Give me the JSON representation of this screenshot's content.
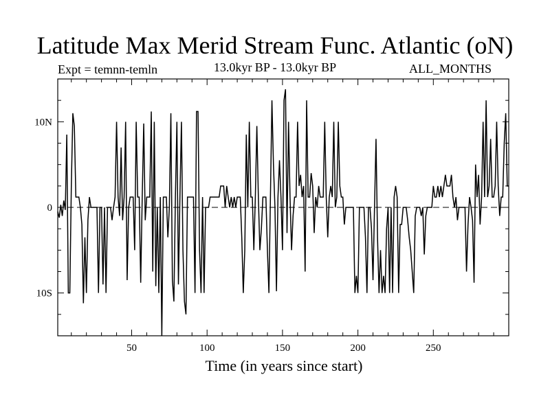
{
  "chart_data": {
    "type": "line",
    "title": "Latitude Max Merid Stream Func. Atlantic (oN)",
    "subtitle_left": "Expt = temnn-temln",
    "subtitle_center": "13.0kyr BP - 13.0kyr BP",
    "subtitle_right": "ALL_MONTHS",
    "xlabel": "Time (in years since start)",
    "ylabel": "",
    "xlim": [
      1,
      300
    ],
    "ylim": [
      -15,
      15
    ],
    "xticks": [
      50,
      100,
      150,
      200,
      250
    ],
    "xtick_labels": [
      "50",
      "100",
      "150",
      "200",
      "250"
    ],
    "yticks": [
      -10,
      0,
      10
    ],
    "ytick_labels": [
      "10S",
      "0",
      "10N"
    ],
    "reference_line": {
      "y": 0,
      "style": "dashed"
    },
    "series": [
      {
        "values": [
          -0.5,
          -1.2,
          0.3,
          -1.0,
          0.8,
          -0.3,
          8.5,
          -10.0,
          -10.0,
          2.5,
          11.0,
          9.5,
          1.2,
          1.2,
          1.2,
          0.0,
          -2.0,
          -11.2,
          -3.5,
          -10.0,
          -1.5,
          1.2,
          0.0,
          0.0,
          0.0,
          0.0,
          0.0,
          -10.0,
          0.0,
          0.0,
          -9.0,
          0.0,
          -10.0,
          0.0,
          0.0,
          0.0,
          -1.5,
          0.0,
          1.2,
          10.0,
          1.2,
          -1.0,
          7.0,
          -1.5,
          1.2,
          10.0,
          -8.5,
          0.0,
          1.2,
          1.2,
          1.2,
          -5.0,
          10.0,
          1.2,
          1.2,
          -8.8,
          1.2,
          9.8,
          -1.5,
          1.2,
          1.2,
          1.2,
          11.2,
          -7.5,
          10.0,
          -9.2,
          0.0,
          -10.0,
          1.2,
          -15.0,
          1.2,
          1.2,
          1.2,
          -3.5,
          0.0,
          11.0,
          -8.5,
          -11.0,
          1.2,
          10.0,
          -9.0,
          1.2,
          10.0,
          -5.0,
          -11.0,
          -12.5,
          1.2,
          1.2,
          1.2,
          1.2,
          1.2,
          -10.0,
          11.2,
          11.2,
          -5.0,
          -10.0,
          1.2,
          -10.0,
          0.0,
          0.0,
          0.0,
          1.2,
          1.2,
          1.2,
          1.2,
          1.2,
          1.2,
          1.2,
          2.5,
          2.5,
          2.5,
          0.0,
          2.5,
          1.2,
          0.0,
          1.2,
          0.0,
          1.2,
          0.0,
          1.2,
          1.2,
          1.2,
          -3.5,
          -10.0,
          -5.0,
          8.5,
          0.0,
          10.0,
          1.2,
          1.2,
          -5.0,
          1.2,
          9.5,
          1.2,
          -5.0,
          -2.5,
          1.2,
          1.2,
          1.2,
          -5.0,
          -10.0,
          1.2,
          12.5,
          5.0,
          0.0,
          -9.8,
          1.2,
          5.5,
          1.2,
          -5.0,
          12.5,
          13.8,
          -3.0,
          10.0,
          1.2,
          -5.0,
          -1.0,
          1.2,
          1.2,
          10.0,
          2.5,
          3.8,
          1.2,
          2.5,
          -7.5,
          12.5,
          1.2,
          1.2,
          4.0,
          2.5,
          -3.0,
          1.2,
          0.0,
          2.5,
          1.2,
          1.2,
          1.2,
          10.0,
          1.2,
          -3.5,
          1.2,
          2.5,
          1.2,
          10.0,
          0.0,
          1.2,
          10.0,
          2.5,
          1.2,
          1.2,
          -2.0,
          0.0,
          0.0,
          0.0,
          0.0,
          0.0,
          0.0,
          -10.0,
          -8.0,
          -10.0,
          0.0,
          0.0,
          0.0,
          0.0,
          -3.5,
          -10.0,
          0.0,
          0.0,
          -2.5,
          -8.5,
          0.0,
          8.0,
          -3.5,
          -10.0,
          -5.0,
          -10.0,
          -8.0,
          -10.0,
          -2.5,
          0.0,
          -10.0,
          0.0,
          -10.0,
          1.2,
          2.5,
          1.2,
          -10.0,
          -2.0,
          -2.0,
          0.0,
          0.0,
          0.0,
          -1.5,
          -3.5,
          -5.0,
          -7.5,
          -10.0,
          -1.0,
          0.0,
          0.0,
          0.0,
          -1.0,
          0.0,
          -5.5,
          -1.0,
          0.0,
          0.0,
          0.0,
          0.0,
          2.5,
          1.2,
          1.2,
          2.5,
          1.2,
          2.5,
          1.2,
          2.5,
          3.8,
          2.5,
          2.5,
          2.5,
          3.8,
          1.2,
          0.0,
          1.2,
          -1.5,
          0.0,
          0.0,
          0.0,
          0.0,
          0.0,
          -7.5,
          -2.0,
          1.2,
          0.0,
          -1.5,
          -8.8,
          5.0,
          1.2,
          3.8,
          -2.0,
          1.2,
          10.0,
          1.2,
          12.5,
          1.2,
          2.5,
          8.0,
          1.2,
          1.2,
          2.5,
          10.0,
          2.5,
          -1.0,
          1.2,
          1.2,
          7.5,
          11.0,
          2.5,
          2.5
        ]
      }
    ]
  }
}
